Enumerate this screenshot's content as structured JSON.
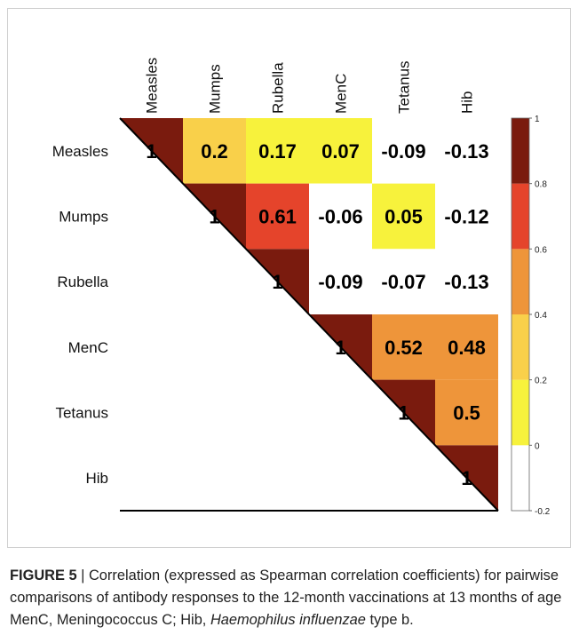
{
  "chart_data": {
    "type": "heatmap",
    "rows": [
      "Measles",
      "Mumps",
      "Rubella",
      "MenC",
      "Tetanus",
      "Hib"
    ],
    "columns": [
      "Measles",
      "Mumps",
      "Rubella",
      "MenC",
      "Tetanus",
      "Hib"
    ],
    "values": [
      [
        1,
        0.2,
        0.17,
        0.07,
        -0.09,
        -0.13
      ],
      [
        null,
        1,
        0.61,
        -0.06,
        0.05,
        -0.12
      ],
      [
        null,
        null,
        1,
        -0.09,
        -0.07,
        -0.13
      ],
      [
        null,
        null,
        null,
        1,
        0.52,
        0.48
      ],
      [
        null,
        null,
        null,
        null,
        1,
        0.5
      ],
      [
        null,
        null,
        null,
        null,
        null,
        1
      ]
    ],
    "colorbar": {
      "lim": [
        -0.2,
        1
      ],
      "ticks": [
        -0.2,
        0,
        0.2,
        0.4,
        0.6,
        0.8,
        1
      ],
      "colors": [
        "#ffffff",
        "#f7f23c",
        "#f9d04a",
        "#ee953a",
        "#e5442b",
        "#7a1b0e"
      ]
    }
  },
  "caption": {
    "label": "FIGURE 5",
    "text": "| Correlation (expressed as Spearman correlation coefficients) for pairwise comparisons of antibody responses to the 12-month vaccinations at 13 months of age MenC, Meningococcus C; Hib,",
    "italic": "Haemophilus influenzae",
    "tail": "type b."
  }
}
